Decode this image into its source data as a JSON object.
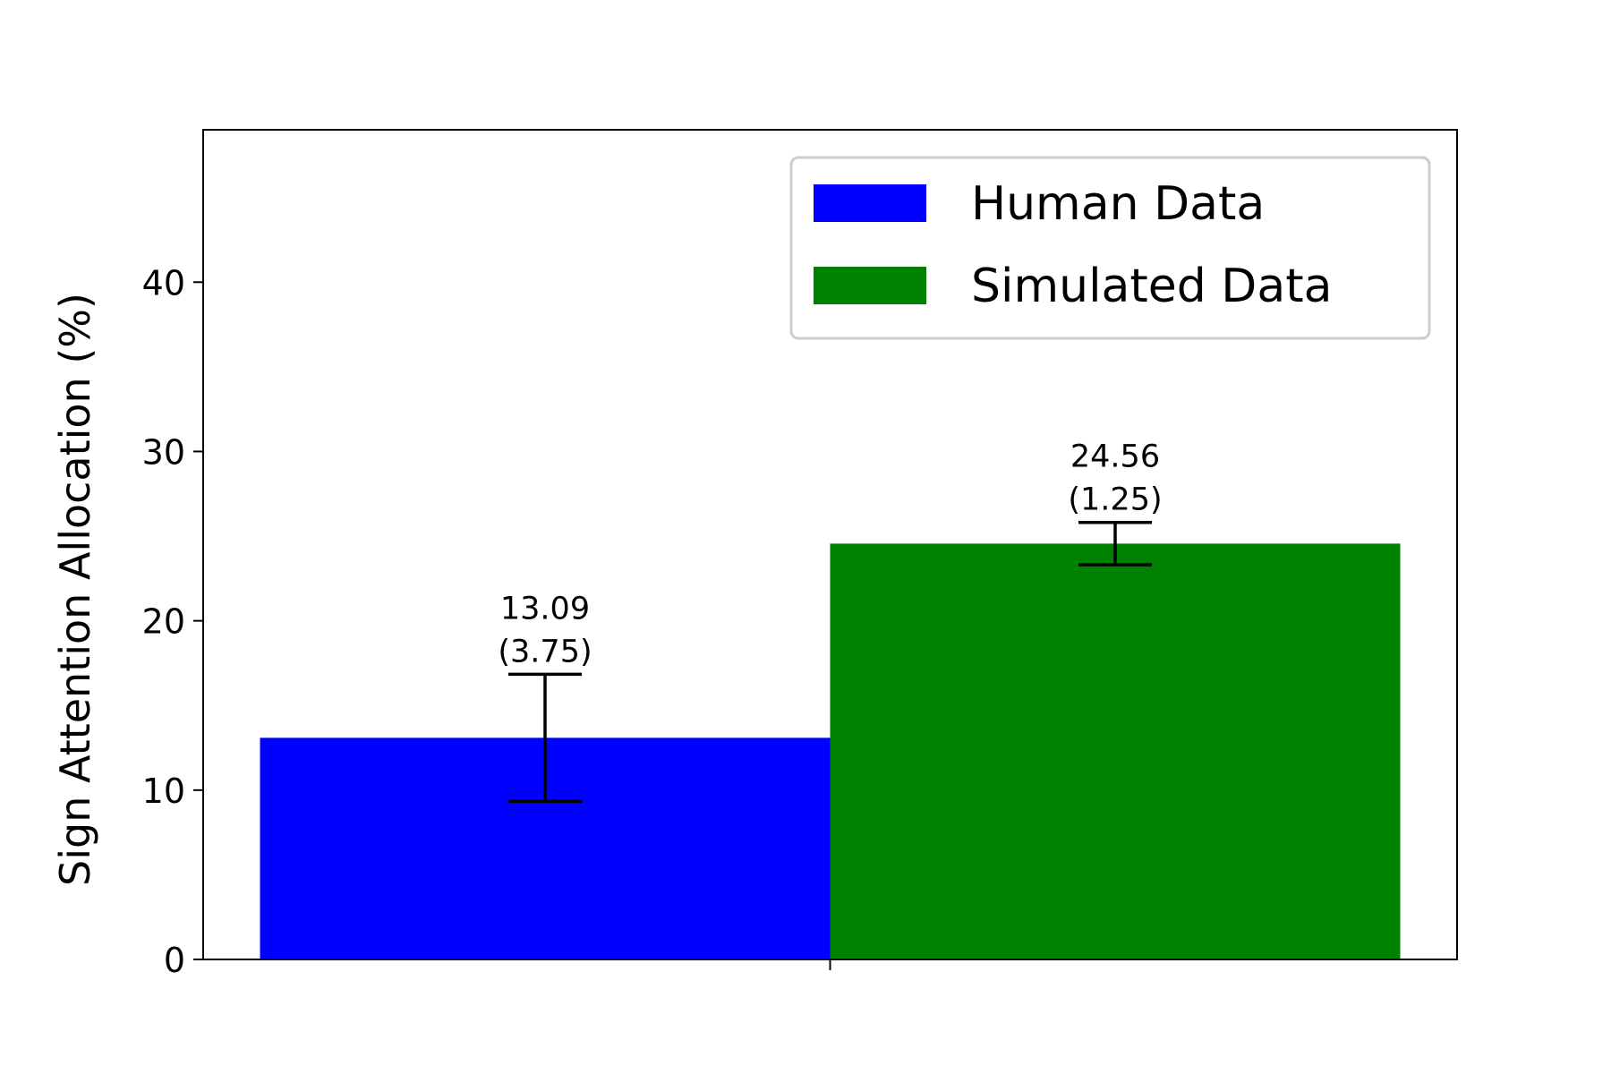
{
  "chart_data": {
    "type": "bar",
    "title": "",
    "xlabel": "",
    "ylabel": "Sign Attention Allocation (%)",
    "ylim": [
      0,
      49
    ],
    "yticks": [
      0,
      10,
      20,
      30,
      40
    ],
    "grid": false,
    "legend_position": "top-right",
    "series": [
      {
        "name": "Human Data",
        "value": 13.09,
        "error": 3.75,
        "color": "#0000ff",
        "value_label": "13.09",
        "error_label": "(3.75)"
      },
      {
        "name": "Simulated Data",
        "value": 24.56,
        "error": 1.25,
        "color": "#008000",
        "value_label": "24.56",
        "error_label": "(1.25)"
      }
    ]
  }
}
